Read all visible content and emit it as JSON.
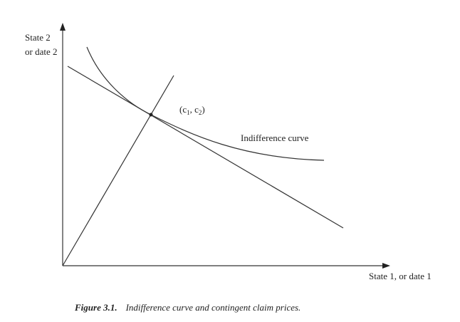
{
  "axes": {
    "y_label": [
      "State 2",
      "or date 2"
    ],
    "x_label": "State 1, or date 1"
  },
  "point_label": {
    "open": "(c",
    "sub1": "1",
    "mid": ", c",
    "sub2": "2",
    "close": ")"
  },
  "curve_label": "Indifference curve",
  "caption": {
    "number": "Figure 3.1.",
    "text": "Indifference curve and contingent claim prices."
  }
}
